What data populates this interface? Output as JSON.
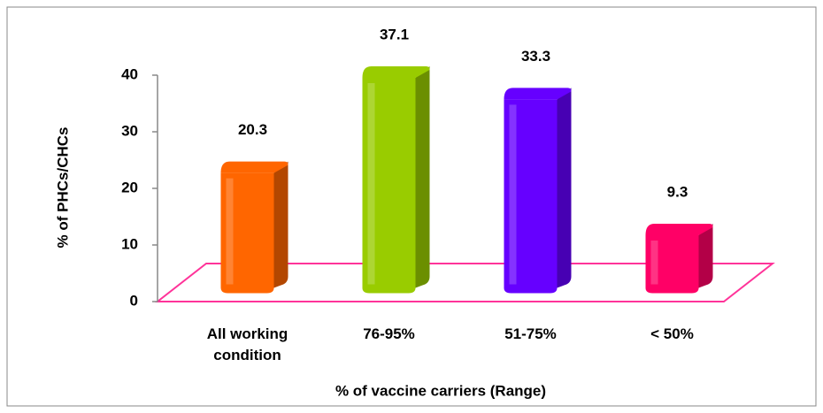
{
  "chart_data": {
    "type": "bar3d",
    "categories": [
      "All working condition",
      "76-95%",
      "51-75%",
      "< 50%"
    ],
    "values": [
      20.3,
      37.1,
      33.3,
      9.3
    ],
    "colors": [
      "#ff6600",
      "#99cc00",
      "#6600ff",
      "#ff0066"
    ],
    "ylabel": "% of PHCs/CHCs",
    "xlabel": "% of vaccine carriers (Range)",
    "ylim": [
      0,
      40
    ],
    "yticks": [
      0,
      10,
      20,
      30,
      40
    ]
  }
}
